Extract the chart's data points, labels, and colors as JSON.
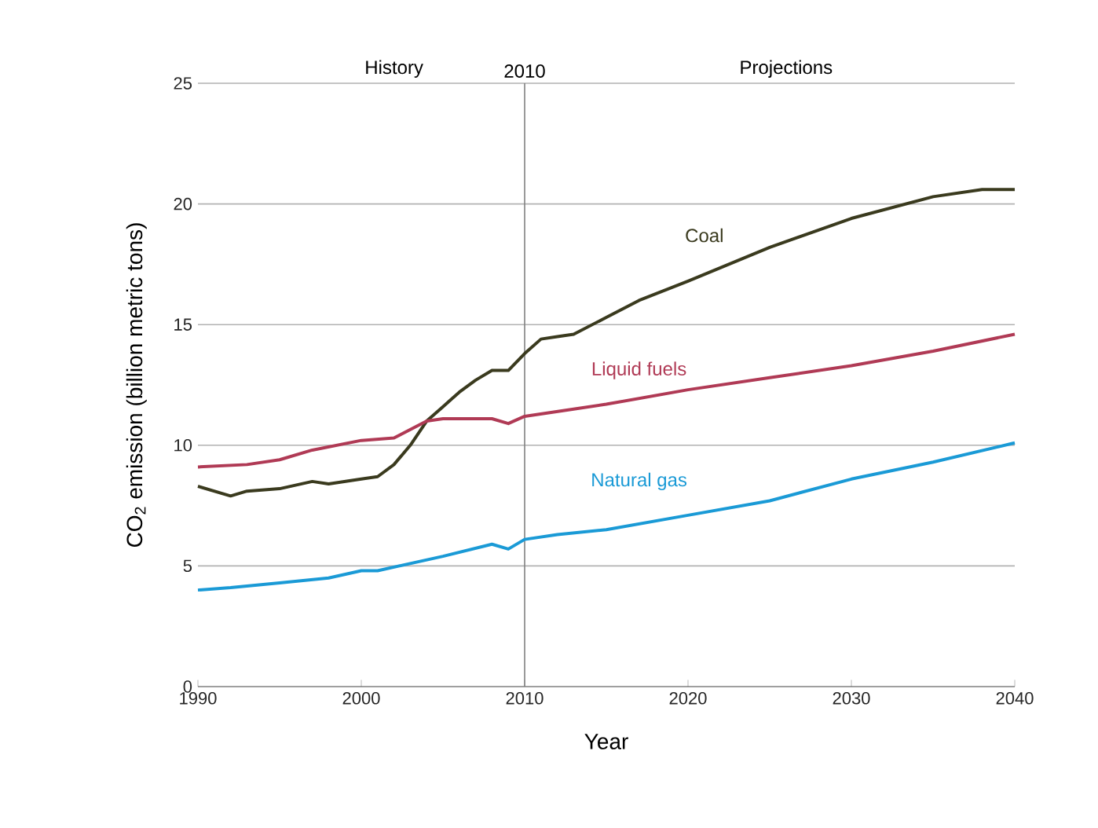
{
  "chart_data": {
    "type": "line",
    "xlabel": "Year",
    "ylabel": "CO$_{2}$ emission (billion metric tons)",
    "annotations": [
      "History",
      "Projections"
    ],
    "xlim": [
      1990,
      2040
    ],
    "xticks": [
      1990,
      2000,
      2010,
      2020,
      2030,
      2040
    ],
    "ylim": [
      0,
      25
    ],
    "yticks": [
      0,
      5,
      10,
      15,
      20,
      25
    ],
    "grid": "y",
    "marker": "none",
    "line_style": "solid",
    "ref_lines": [
      {
        "axis": "x",
        "value": 2010,
        "label": "2010",
        "color": "#808080"
      }
    ],
    "series": [
      {
        "name": "Coal",
        "color": "#3a3a1e",
        "x": [
          1990,
          1992,
          1993,
          1995,
          1997,
          1998,
          2000,
          2001,
          2002,
          2003,
          2004,
          2005,
          2006,
          2007,
          2008,
          2009,
          2010,
          2011,
          2012,
          2013,
          2015,
          2017,
          2020,
          2025,
          2030,
          2035,
          2038,
          2040
        ],
        "values": [
          8.3,
          7.9,
          8.1,
          8.2,
          8.5,
          8.4,
          8.6,
          8.7,
          9.2,
          10.0,
          11.0,
          11.6,
          12.2,
          12.7,
          13.1,
          13.1,
          13.8,
          14.4,
          14.5,
          14.6,
          15.3,
          16.0,
          16.8,
          18.2,
          19.4,
          20.3,
          20.6,
          20.6
        ]
      },
      {
        "name": "Liquid fuels",
        "color": "#b03a55",
        "x": [
          1990,
          1993,
          1995,
          1997,
          2000,
          2002,
          2004,
          2005,
          2007,
          2008,
          2009,
          2010,
          2013,
          2015,
          2020,
          2025,
          2030,
          2035,
          2040
        ],
        "values": [
          9.1,
          9.2,
          9.4,
          9.8,
          10.2,
          10.3,
          11.0,
          11.1,
          11.1,
          11.1,
          10.9,
          11.2,
          11.5,
          11.7,
          12.3,
          12.8,
          13.3,
          13.9,
          14.6
        ]
      },
      {
        "name": "Natural gas",
        "color": "#1a9ad6",
        "x": [
          1990,
          1992,
          1995,
          1998,
          2000,
          2001,
          2003,
          2005,
          2008,
          2009,
          2010,
          2012,
          2015,
          2020,
          2025,
          2030,
          2035,
          2040
        ],
        "values": [
          4.0,
          4.1,
          4.3,
          4.5,
          4.8,
          4.8,
          5.1,
          5.4,
          5.9,
          5.7,
          6.1,
          6.3,
          6.5,
          7.1,
          7.7,
          8.6,
          9.3,
          10.1
        ]
      }
    ]
  }
}
